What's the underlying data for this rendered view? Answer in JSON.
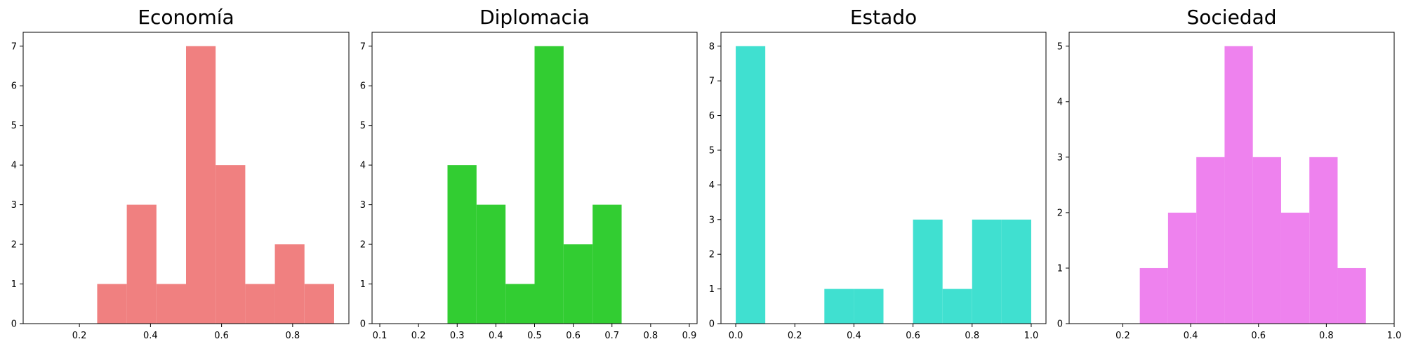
{
  "chart_data": [
    {
      "type": "histogram",
      "title": "Economía",
      "color": "#F08080",
      "bins": [
        [
          0.25,
          0.3333,
          1
        ],
        [
          0.3333,
          0.4167,
          3
        ],
        [
          0.4167,
          0.5,
          1
        ],
        [
          0.5,
          0.5833,
          7
        ],
        [
          0.5833,
          0.6667,
          4
        ],
        [
          0.6667,
          0.75,
          1
        ],
        [
          0.75,
          0.8333,
          2
        ],
        [
          0.8333,
          0.9167,
          1
        ]
      ],
      "xlim": [
        0.0417,
        0.9583
      ],
      "ylim": [
        0,
        7.35
      ],
      "xticks": [
        0.2,
        0.4,
        0.6,
        0.8
      ],
      "xtick_labels": [
        "0.2",
        "0.4",
        "0.6",
        "0.8"
      ],
      "yticks": [
        0,
        1,
        2,
        3,
        4,
        5,
        6,
        7
      ],
      "ytick_labels": [
        "0",
        "1",
        "2",
        "3",
        "4",
        "5",
        "6",
        "7"
      ]
    },
    {
      "type": "histogram",
      "title": "Diplomacia",
      "color": "#32CD32",
      "bins": [
        [
          0.275,
          0.35,
          4
        ],
        [
          0.35,
          0.425,
          3
        ],
        [
          0.425,
          0.5,
          1
        ],
        [
          0.5,
          0.575,
          7
        ],
        [
          0.575,
          0.65,
          2
        ],
        [
          0.65,
          0.725,
          3
        ]
      ],
      "xlim": [
        0.08,
        0.92
      ],
      "ylim": [
        0,
        7.35
      ],
      "xticks": [
        0.1,
        0.2,
        0.3,
        0.4,
        0.5,
        0.6,
        0.7,
        0.8,
        0.9
      ],
      "xtick_labels": [
        "0.1",
        "0.2",
        "0.3",
        "0.4",
        "0.5",
        "0.6",
        "0.7",
        "0.8",
        "0.9"
      ],
      "yticks": [
        0,
        1,
        2,
        3,
        4,
        5,
        6,
        7
      ],
      "ytick_labels": [
        "0",
        "1",
        "2",
        "3",
        "4",
        "5",
        "6",
        "7"
      ]
    },
    {
      "type": "histogram",
      "title": "Estado",
      "color": "#40E0D0",
      "bins": [
        [
          0.0,
          0.1,
          8
        ],
        [
          0.3,
          0.4,
          1
        ],
        [
          0.4,
          0.5,
          1
        ],
        [
          0.6,
          0.7,
          3
        ],
        [
          0.7,
          0.8,
          1
        ],
        [
          0.8,
          0.9,
          3
        ],
        [
          0.9,
          1.0,
          3
        ]
      ],
      "xlim": [
        -0.05,
        1.05
      ],
      "ylim": [
        0,
        8.4
      ],
      "xticks": [
        0.0,
        0.2,
        0.4,
        0.6,
        0.8,
        1.0
      ],
      "xtick_labels": [
        "0.0",
        "0.2",
        "0.4",
        "0.6",
        "0.8",
        "1.0"
      ],
      "yticks": [
        0,
        1,
        2,
        3,
        4,
        5,
        6,
        7,
        8
      ],
      "ytick_labels": [
        "0",
        "1",
        "2",
        "3",
        "4",
        "5",
        "6",
        "7",
        "8"
      ]
    },
    {
      "type": "histogram",
      "title": "Sociedad",
      "color": "#EE82EE",
      "bins": [
        [
          0.25,
          0.3333,
          1
        ],
        [
          0.3333,
          0.4167,
          2
        ],
        [
          0.4167,
          0.5,
          3
        ],
        [
          0.5,
          0.5833,
          5
        ],
        [
          0.5833,
          0.6667,
          3
        ],
        [
          0.6667,
          0.75,
          2
        ],
        [
          0.75,
          0.8333,
          3
        ],
        [
          0.8333,
          0.9167,
          1
        ]
      ],
      "xlim": [
        0.0417,
        1.0
      ],
      "ylim": [
        0,
        5.25
      ],
      "xticks": [
        0.2,
        0.4,
        0.6,
        0.8,
        1.0
      ],
      "xtick_labels": [
        "0.2",
        "0.4",
        "0.6",
        "0.8",
        "1.0"
      ],
      "yticks": [
        0,
        1,
        2,
        3,
        4,
        5
      ],
      "ytick_labels": [
        "0",
        "1",
        "2",
        "3",
        "4",
        "5"
      ]
    }
  ]
}
